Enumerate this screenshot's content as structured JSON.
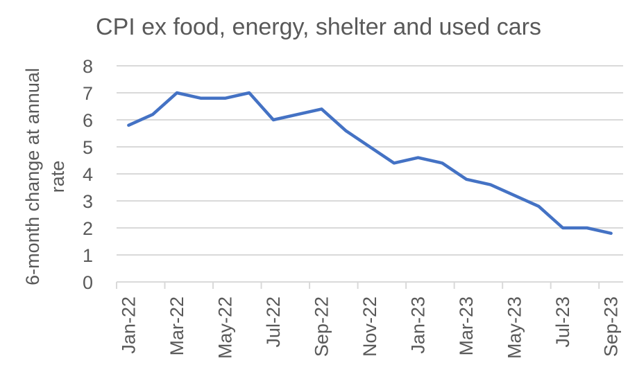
{
  "chart_data": {
    "type": "line",
    "title": "CPI ex food, energy, shelter and used cars",
    "xlabel": "",
    "ylabel_lines": [
      "6-month change at annual",
      "rate"
    ],
    "ylim": [
      0,
      8
    ],
    "yticks": [
      "0",
      "1",
      "2",
      "3",
      "4",
      "5",
      "6",
      "7",
      "8"
    ],
    "grid": true,
    "legend": "none",
    "x": [
      "Jan-22",
      "Feb-22",
      "Mar-22",
      "Apr-22",
      "May-22",
      "Jun-22",
      "Jul-22",
      "Aug-22",
      "Sep-22",
      "Oct-22",
      "Nov-22",
      "Dec-22",
      "Jan-23",
      "Feb-23",
      "Mar-23",
      "Apr-23",
      "May-23",
      "Jun-23",
      "Jul-23",
      "Aug-23",
      "Sep-23"
    ],
    "xtick_labels": [
      "Jan-22",
      "Mar-22",
      "May-22",
      "Jul-22",
      "Sep-22",
      "Nov-22",
      "Jan-23",
      "Mar-23",
      "May-23",
      "Jul-23",
      "Sep-23"
    ],
    "series": [
      {
        "name": "CPI ex food, energy, shelter and used cars",
        "color": "#4472C4",
        "values": [
          5.8,
          6.2,
          7.0,
          6.8,
          6.8,
          7.0,
          6.0,
          6.2,
          6.4,
          5.6,
          5.0,
          4.4,
          4.6,
          4.4,
          3.8,
          3.6,
          3.2,
          2.8,
          2.0,
          2.0,
          1.8
        ]
      }
    ]
  }
}
